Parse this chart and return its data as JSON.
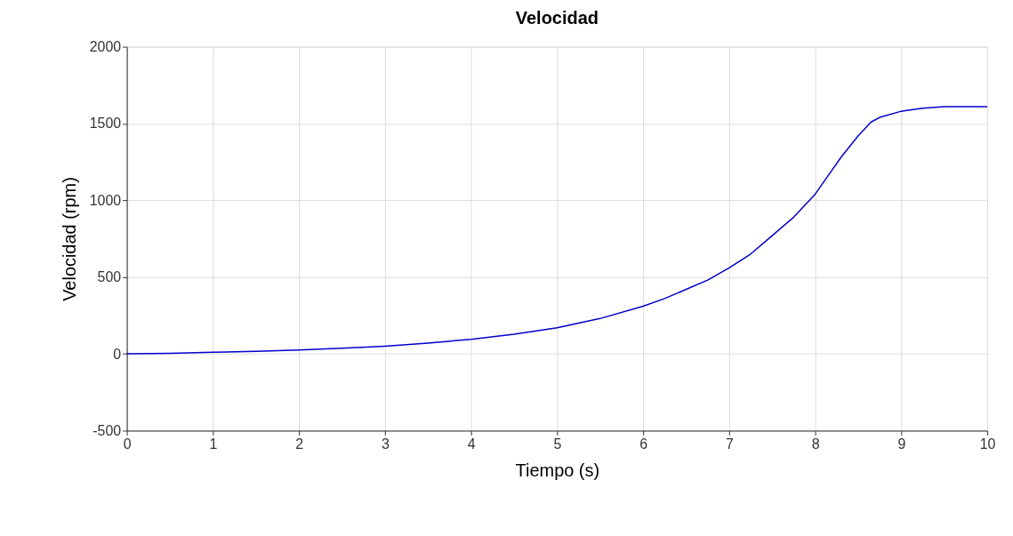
{
  "chart_data": {
    "type": "line",
    "title": "Velocidad",
    "xlabel": "Tiempo (s)",
    "ylabel": "Velocidad (rpm)",
    "x": [
      0,
      0.5,
      1,
      1.5,
      2,
      2.5,
      3,
      3.5,
      4,
      4.5,
      5,
      5.5,
      6,
      6.25,
      6.5,
      6.75,
      7,
      7.25,
      7.5,
      7.75,
      8,
      8.15,
      8.3,
      8.5,
      8.65,
      8.75,
      9,
      9.25,
      9.5,
      10
    ],
    "series": [
      {
        "color": "#0000cc",
        "values": [
          0,
          4,
          10,
          16,
          25,
          36,
          50,
          70,
          95,
          128,
          170,
          230,
          310,
          360,
          420,
          480,
          560,
          650,
          770,
          890,
          1040,
          1160,
          1280,
          1420,
          1510,
          1540,
          1580,
          1600,
          1610,
          1610
        ]
      }
    ],
    "xlim": [
      0,
      10
    ],
    "ylim": [
      -500,
      2000
    ],
    "xticks": [
      0,
      1,
      2,
      3,
      4,
      5,
      6,
      7,
      8,
      9,
      10
    ],
    "yticks": [
      -500,
      0,
      500,
      1000,
      1500,
      2000
    ],
    "grid": true,
    "marker": "none",
    "line_style": "solid"
  }
}
